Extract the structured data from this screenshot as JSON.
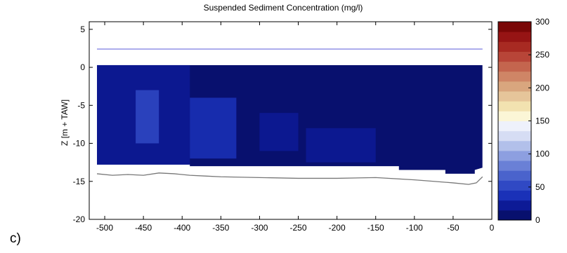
{
  "panel_label": "c)",
  "chart_data": [
    {
      "type": "heatmap",
      "title": "Suspended Sediment Concentration (mg/l)",
      "xlabel": "",
      "ylabel": "Z [m + TAW]",
      "xlim": [
        -520,
        0
      ],
      "ylim": [
        -20,
        6
      ],
      "x_ticks": [
        -500,
        -450,
        -400,
        -350,
        -300,
        -250,
        -200,
        -150,
        -100,
        -50,
        0
      ],
      "y_ticks": [
        5,
        0,
        -5,
        -10,
        -15,
        -20
      ],
      "grid": false,
      "colorbar": {
        "range": [
          0,
          300
        ],
        "ticks": [
          0,
          50,
          100,
          150,
          200,
          250,
          300
        ],
        "colormap": "blue-white-red",
        "colors": [
          "#08106e",
          "#0d1a96",
          "#1a31b8",
          "#3049c4",
          "#4a63cc",
          "#6a80d6",
          "#8d9fe0",
          "#b2c0ea",
          "#d6ddf4",
          "#eef1fb",
          "#fbf6d6",
          "#f2e2b0",
          "#e6c59a",
          "#d9a67e",
          "#cf8566",
          "#c4654e",
          "#b84538",
          "#a82a22",
          "#961414",
          "#7a0707"
        ]
      },
      "surface_line": {
        "z": 2.4,
        "color": "#5a5ad8"
      },
      "measured_field": {
        "x_range": [
          -510,
          -12
        ],
        "top_z": 0.3,
        "background_value": 10,
        "patches": [
          {
            "x": [
              -510,
              -390
            ],
            "z": [
              0.3,
              -13
            ],
            "value": 22
          },
          {
            "x": [
              -460,
              -430
            ],
            "z": [
              -3,
              -10
            ],
            "value": 45
          },
          {
            "x": [
              -390,
              -330
            ],
            "z": [
              -4,
              -12
            ],
            "value": 30
          },
          {
            "x": [
              -300,
              -250
            ],
            "z": [
              -6,
              -11
            ],
            "value": 25
          },
          {
            "x": [
              -240,
              -150
            ],
            "z": [
              -8,
              -12.5
            ],
            "value": 22
          }
        ],
        "bottom_profile": [
          [
            -510,
            -12.8
          ],
          [
            -390,
            -12.8
          ],
          [
            -390,
            -13
          ],
          [
            -120,
            -13
          ],
          [
            -120,
            -13.5
          ],
          [
            -60,
            -13.5
          ],
          [
            -60,
            -14
          ],
          [
            -22,
            -14
          ],
          [
            -22,
            -13.5
          ],
          [
            -12,
            -13.2
          ]
        ]
      },
      "bed_profile": {
        "color": "#777777",
        "x": [
          -510,
          -490,
          -470,
          -450,
          -430,
          -410,
          -390,
          -370,
          -350,
          -300,
          -250,
          -200,
          -150,
          -100,
          -75,
          -50,
          -30,
          -20,
          -12
        ],
        "z": [
          -14.0,
          -14.2,
          -14.1,
          -14.2,
          -13.9,
          -14.0,
          -14.2,
          -14.3,
          -14.4,
          -14.5,
          -14.6,
          -14.6,
          -14.5,
          -14.8,
          -15.0,
          -15.2,
          -15.4,
          -15.2,
          -14.4
        ]
      }
    }
  ]
}
